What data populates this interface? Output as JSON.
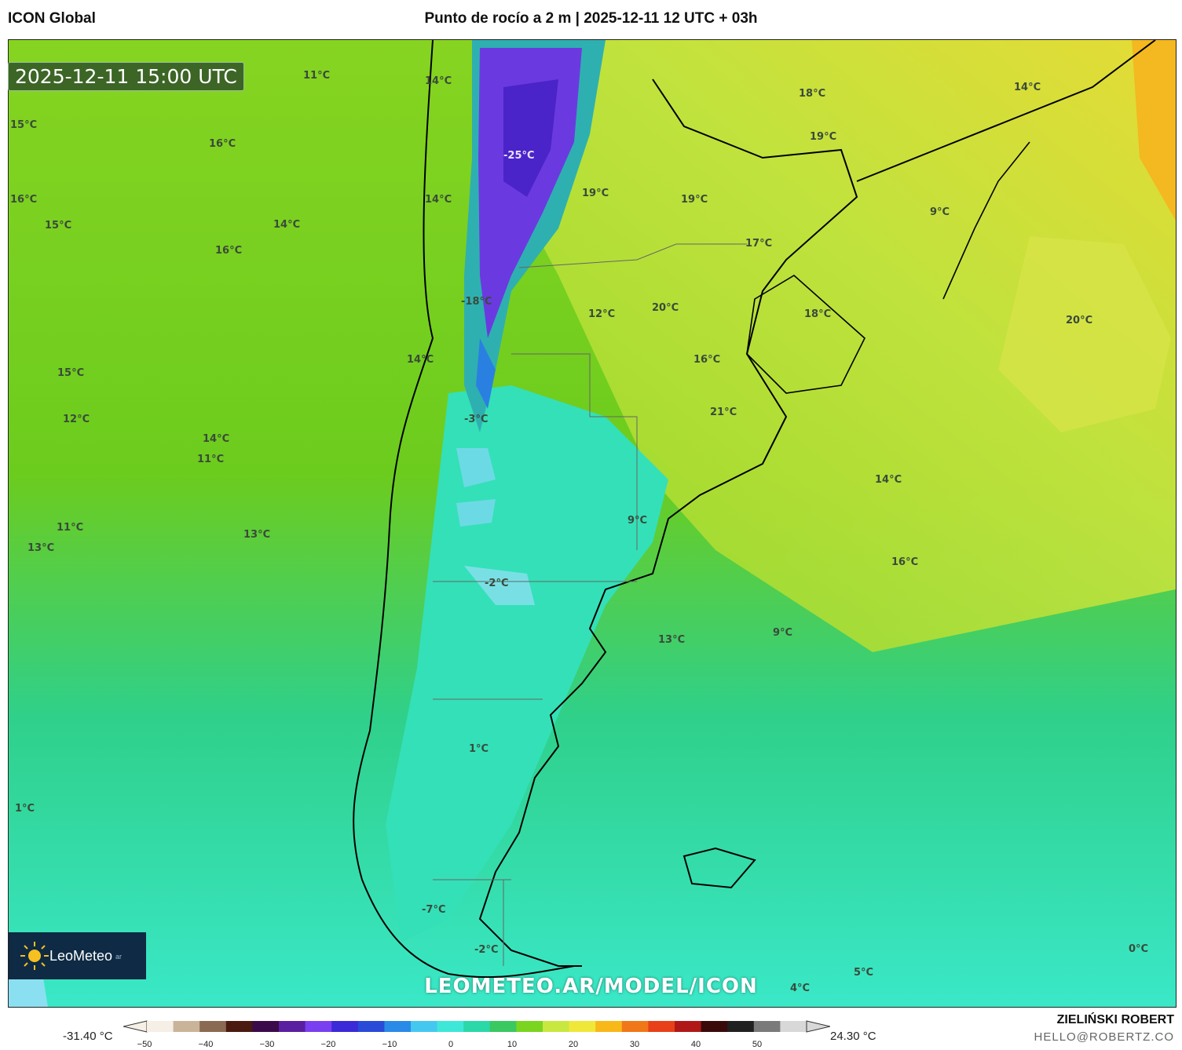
{
  "header": {
    "model_name": "ICON Global",
    "title": "Punto de rocío a 2 m | 2025-12-11 12 UTC + 03h"
  },
  "map": {
    "valid_time": "2025-12-11 15:00 UTC",
    "watermark": "LEOMETEO.AR/MODEL/ICON",
    "logo": {
      "name": "LeoMeteo",
      "suffix": "ar"
    },
    "labels": [
      "11°C",
      "14°C",
      "15°C",
      "16°C",
      "16°C",
      "15°C",
      "14°C",
      "16°C",
      "14°C",
      "-25°C",
      "19°C",
      "19°C",
      "18°C",
      "19°C",
      "14°C",
      "9°C",
      "17°C",
      "20°C",
      "12°C",
      "-18°C",
      "18°C",
      "20°C",
      "14°C",
      "16°C",
      "15°C",
      "12°C",
      "21°C",
      "-3°C",
      "14°C",
      "11°C",
      "14°C",
      "11°C",
      "13°C",
      "13°C",
      "9°C",
      "16°C",
      "-2°C",
      "13°C",
      "9°C",
      "1°C",
      "1°C",
      "-7°C",
      "-2°C",
      "0°C",
      "5°C",
      "4°C"
    ]
  },
  "legend": {
    "min_label": "-31.40 °C",
    "max_label": "24.30 °C",
    "ticks": [
      "−50",
      "−40",
      "−30",
      "−20",
      "−10",
      "0",
      "10",
      "20",
      "30",
      "40",
      "50"
    ],
    "colors": [
      "#f5efe6",
      "#c9b49a",
      "#8a6a52",
      "#4a1a10",
      "#3b0a4a",
      "#5a1fa0",
      "#7a3ff0",
      "#3a2ad8",
      "#2a4ad8",
      "#2a8ae8",
      "#45c8f0",
      "#3de8d8",
      "#2ad8a8",
      "#3ac860",
      "#7ad420",
      "#c8e840",
      "#f0e838",
      "#f8b818",
      "#f07818",
      "#e84018",
      "#b01818",
      "#3a0a0a",
      "#202020",
      "#7a7a7a",
      "#d8d8d8"
    ]
  },
  "credits": {
    "author": "ZIELIŃSKI ROBERT",
    "email": "HELLO@ROBERTZ.CO"
  }
}
